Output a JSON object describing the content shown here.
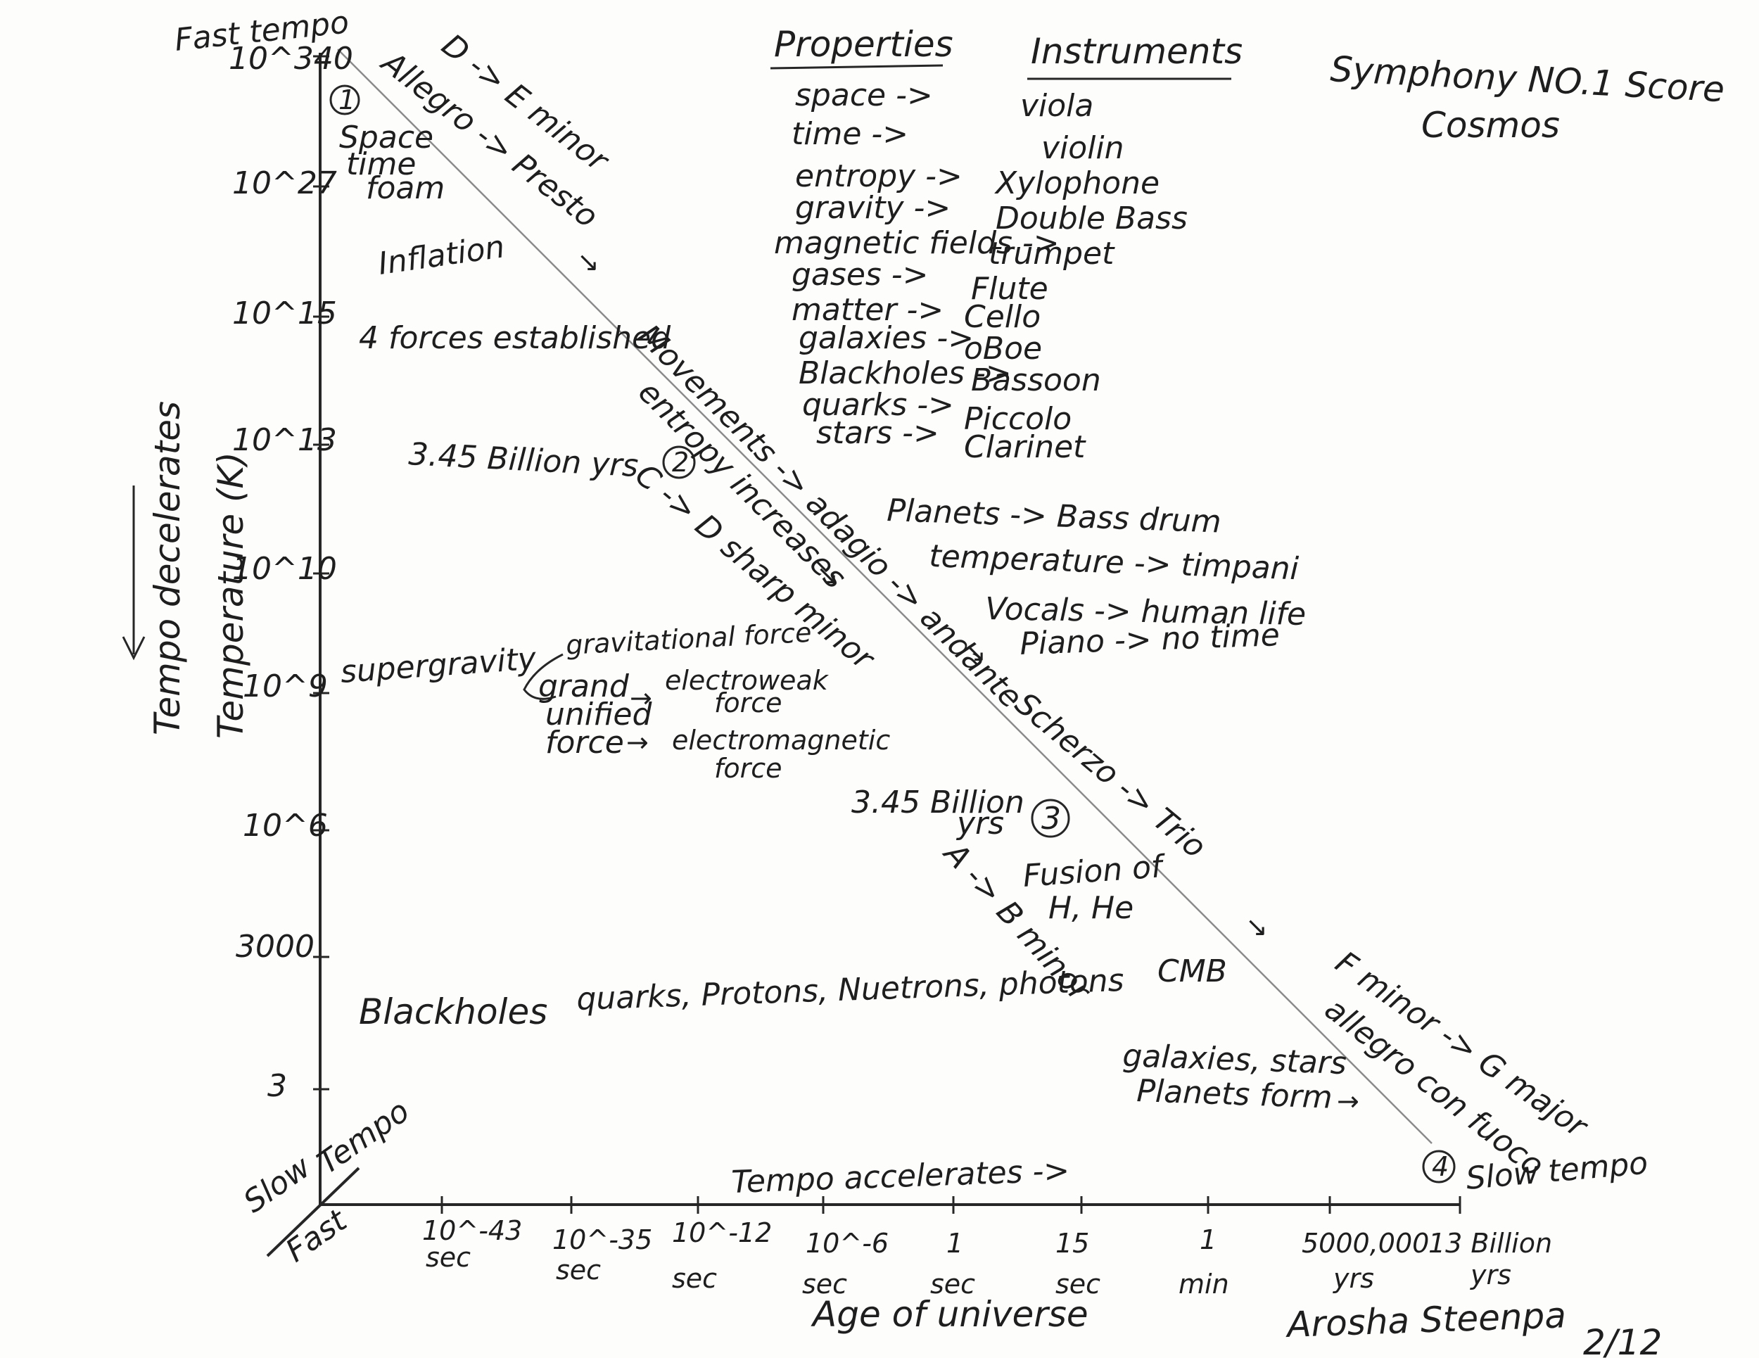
{
  "title": {
    "line1": "Symphony NO.1 Score",
    "line2": "Cosmos"
  },
  "signature": {
    "name": "Arosha Steenpa",
    "date": "2/12"
  },
  "headers": {
    "properties": "Properties",
    "instruments": "Instruments"
  },
  "mappings": [
    {
      "property": "space ->",
      "instrument": "viola"
    },
    {
      "property": "time ->",
      "instrument": "violin"
    },
    {
      "property": "entropy ->",
      "instrument": "Xylophone"
    },
    {
      "property": "gravity ->",
      "instrument": "Double Bass"
    },
    {
      "property": "magnetic fields ->",
      "instrument": "trumpet"
    },
    {
      "property": "gases ->",
      "instrument": "Flute"
    },
    {
      "property": "matter ->",
      "instrument": "Cello"
    },
    {
      "property": "galaxies ->",
      "instrument": "oBoe"
    },
    {
      "property": "Blackholes ->",
      "instrument": "Bassoon"
    },
    {
      "property": "quarks ->",
      "instrument": "Piccolo"
    },
    {
      "property": "stars ->",
      "instrument": "Clarinet"
    }
  ],
  "extra_mappings": [
    "Planets -> Bass drum",
    "temperature -> timpani",
    "Vocals -> human life",
    "Piano -> no time"
  ],
  "y_axis": {
    "label": "Temperature (K)",
    "side_label": "Tempo decelerates",
    "top_label": "Fast tempo",
    "ticks": [
      "10^340",
      "10^27",
      "10^15",
      "10^13",
      "10^10",
      "10^9",
      "10^6",
      "3000",
      "3"
    ]
  },
  "x_axis": {
    "label": "Age of universe",
    "tempo_label": "Tempo accelerates ->",
    "ticks": [
      {
        "value": "10^-43",
        "unit": "sec"
      },
      {
        "value": "10^-35",
        "unit": "sec"
      },
      {
        "value": "10^-12",
        "unit": "sec"
      },
      {
        "value": "10^-6",
        "unit": "sec"
      },
      {
        "value": "1",
        "unit": "sec"
      },
      {
        "value": "15",
        "unit": "sec"
      },
      {
        "value": "1",
        "unit": "min"
      },
      {
        "value": "5000,000",
        "unit": "yrs"
      },
      {
        "value": "13 Billion",
        "unit": "yrs"
      }
    ]
  },
  "corner": {
    "slow": "Slow",
    "tempo": "Tempo",
    "fast": "Fast"
  },
  "end_label": "Slow tempo",
  "movements": [
    {
      "number": "1",
      "key": "D -> E minor",
      "tempo": "Allegro -> Presto"
    },
    {
      "number": "2",
      "key": "C -> D sharp minor",
      "tempo": "Movements -> adagio -> andante"
    },
    {
      "number": "3",
      "key": "A -> B minor",
      "tempo": "Scherzo -> Trio"
    },
    {
      "number": "4",
      "key": "F minor -> G major",
      "tempo": "allegro con fuoco"
    }
  ],
  "events": {
    "space_time_foam": [
      "Space",
      "time",
      "foam"
    ],
    "inflation": "Inflation",
    "forces": "4 forces established",
    "billion_1": "3.45 Billion yrs",
    "entropy": "entropy increases",
    "supergravity": "supergravity",
    "gravitational": "gravitational force",
    "grand_unified": [
      "grand",
      "unified",
      "force"
    ],
    "electroweak": [
      "electroweak",
      "force"
    ],
    "electromagnetic": [
      "electromagnetic",
      "force"
    ],
    "billion_2": [
      "3.45 Billion",
      "yrs"
    ],
    "fusion": [
      "Fusion of",
      "H, He"
    ],
    "cmb": "CMB",
    "blackholes": "Blackholes",
    "particles": "quarks, Protons, Nuetrons, photons",
    "galaxies": [
      "galaxies, stars",
      "Planets form"
    ]
  }
}
